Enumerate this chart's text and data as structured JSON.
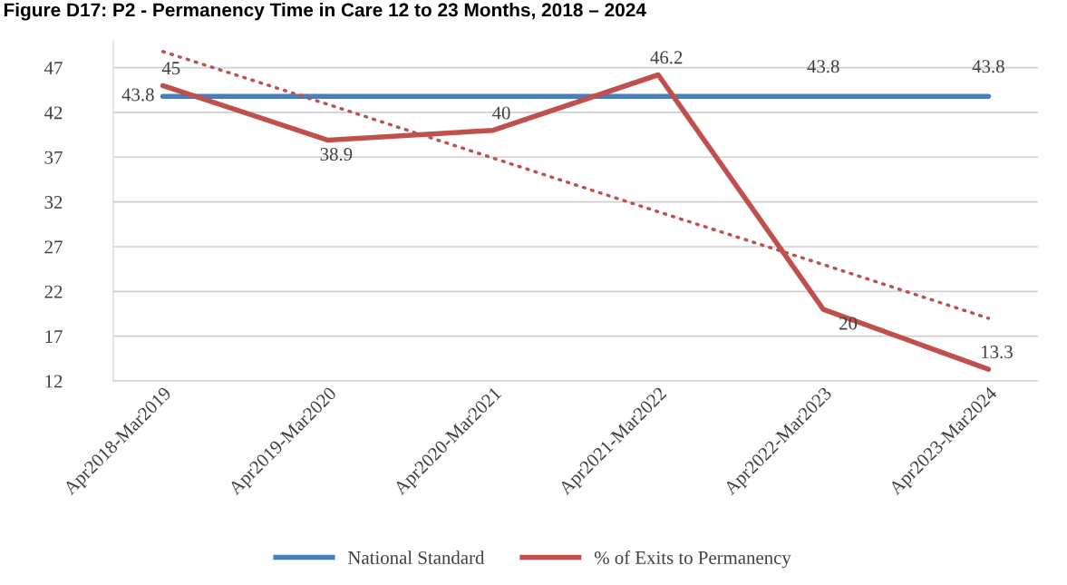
{
  "chart_data": {
    "type": "line",
    "title": "Figure D17: P2 - Permanency Time in Care 12 to 23 Months, 2018 – 2024",
    "categories": [
      "Apr2018-Mar2019",
      "Apr2019-Mar2020",
      "Apr2020-Mar2021",
      "Apr2021-Mar2022",
      "Apr2022-Mar2023",
      "Apr2023-Mar2024"
    ],
    "series": [
      {
        "name": "National Standard",
        "color": "#4a7ebb",
        "values": [
          43.8,
          43.8,
          43.8,
          43.8,
          43.8,
          43.8
        ],
        "value_labels": [
          "43.8",
          null,
          null,
          null,
          "43.8",
          "43.8"
        ]
      },
      {
        "name": "% of Exits to Permanency",
        "color": "#c0504d",
        "values": [
          45,
          38.9,
          40,
          46.2,
          20,
          13.3
        ],
        "value_labels": [
          "45",
          "38.9",
          "40",
          "46.2",
          "20",
          "13.3"
        ]
      },
      {
        "type": "line",
        "color": "#c0504d",
        "line_style": "dotted",
        "values": [
          48.8,
          42.9,
          36.9,
          30.9,
          25.0,
          19.0
        ]
      }
    ],
    "ylim": [
      12,
      50
    ],
    "yticks": [
      12,
      17,
      22,
      27,
      32,
      37,
      42,
      47
    ],
    "grid": "y",
    "legend": "bottom",
    "marker": "none",
    "line_style": "solid"
  }
}
